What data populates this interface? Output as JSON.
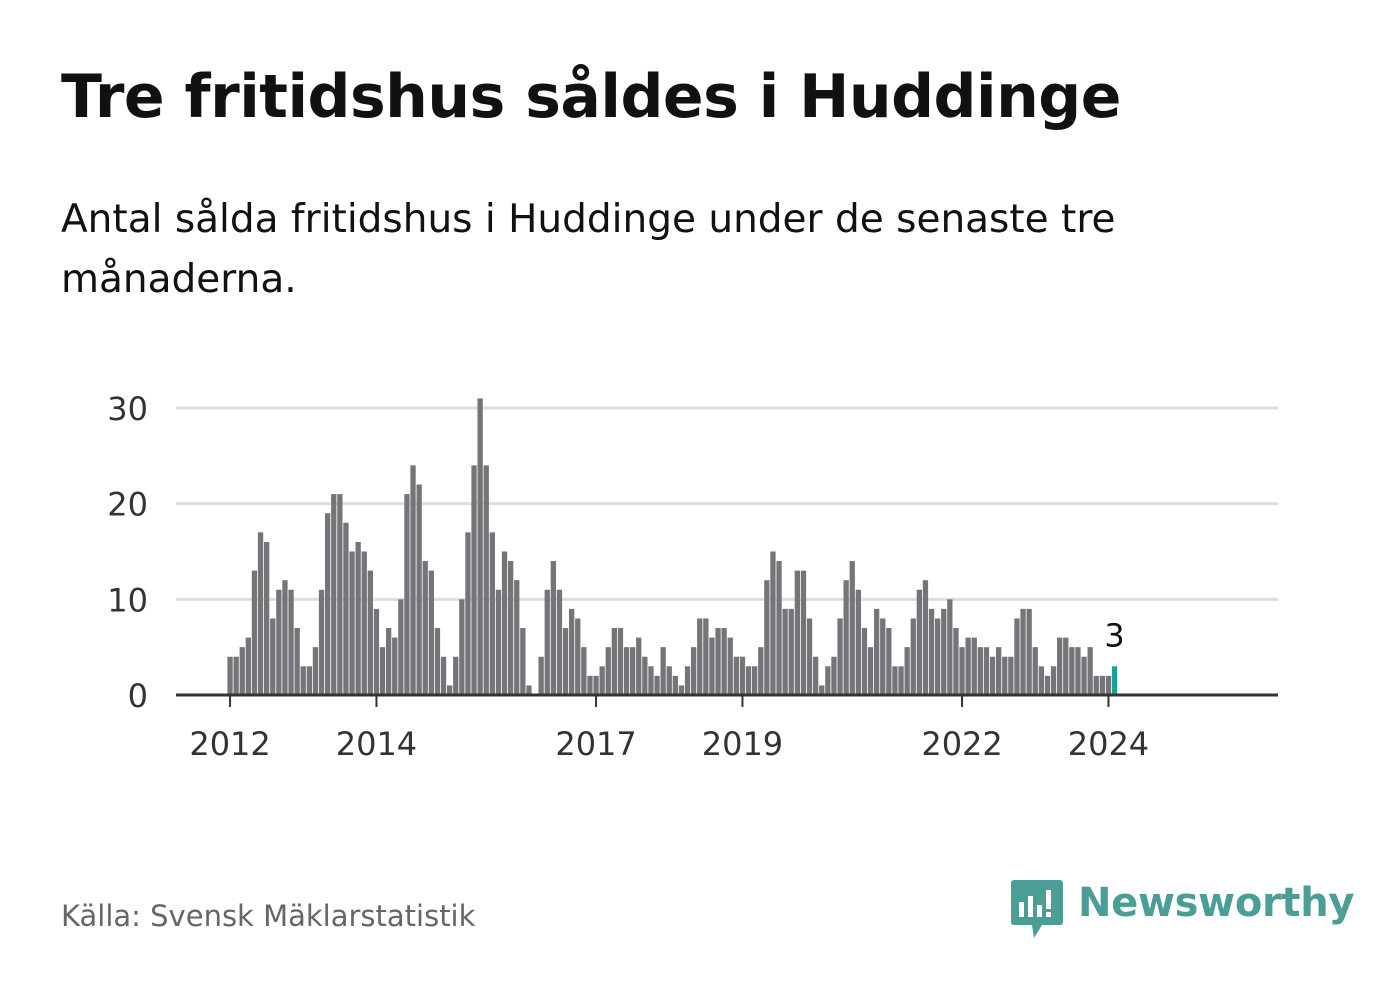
{
  "title": "Tre fritidshus såldes i Huddinge",
  "subtitle": "Antal sålda fritidshus i Huddinge under de senaste tre månaderna.",
  "source": "Källa: Svensk Mäklarstatistik",
  "brand": {
    "name": "Newsworthy",
    "color": "#4a9e95"
  },
  "colors": {
    "bar": "#767479",
    "highlight": "#1fa095",
    "grid": "#dddddd",
    "axis": "#333333"
  },
  "chart_data": {
    "type": "bar",
    "x_start": "2012-01",
    "frequency": "monthly",
    "x_ticks": [
      "2012",
      "2014",
      "2017",
      "2019",
      "2022",
      "2024"
    ],
    "y_ticks": [
      "0",
      "10",
      "20",
      "30"
    ],
    "ylim": [
      0,
      31
    ],
    "grid": true,
    "highlight_last": true,
    "last_value_label": "3",
    "values": [
      4,
      4,
      5,
      6,
      13,
      17,
      16,
      8,
      11,
      12,
      11,
      7,
      3,
      3,
      5,
      11,
      19,
      21,
      21,
      18,
      15,
      16,
      15,
      13,
      9,
      5,
      7,
      6,
      10,
      21,
      24,
      22,
      14,
      13,
      7,
      4,
      1,
      4,
      10,
      17,
      24,
      31,
      24,
      17,
      11,
      15,
      14,
      12,
      7,
      1,
      0,
      4,
      11,
      14,
      11,
      7,
      9,
      8,
      5,
      2,
      2,
      3,
      5,
      7,
      7,
      5,
      5,
      6,
      4,
      3,
      2,
      5,
      3,
      2,
      1,
      3,
      5,
      8,
      8,
      6,
      7,
      7,
      6,
      4,
      4,
      3,
      3,
      5,
      12,
      15,
      14,
      9,
      9,
      13,
      13,
      8,
      4,
      1,
      3,
      4,
      8,
      12,
      14,
      11,
      7,
      5,
      9,
      8,
      7,
      3,
      3,
      5,
      8,
      11,
      12,
      9,
      8,
      9,
      10,
      7,
      5,
      6,
      6,
      5,
      5,
      4,
      5,
      4,
      4,
      8,
      9,
      9,
      5,
      3,
      2,
      3,
      6,
      6,
      5,
      5,
      4,
      5,
      2,
      2,
      2,
      3
    ]
  }
}
